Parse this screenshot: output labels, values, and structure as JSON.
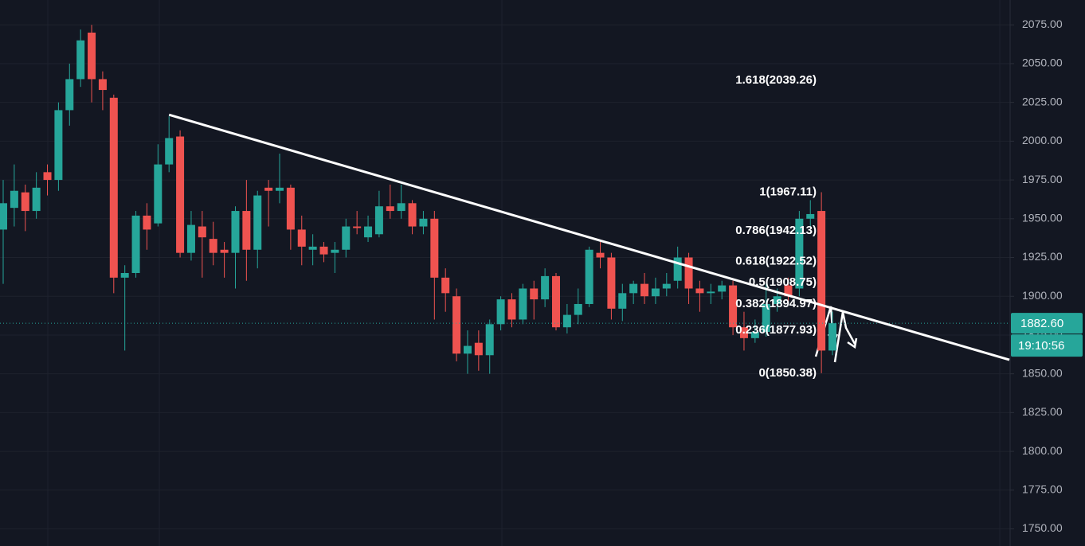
{
  "chart_data": {
    "type": "candlestick",
    "up_color": "#26a69a",
    "down_color": "#ef5350",
    "open": [
      1943,
      1957,
      1967,
      1955,
      1980,
      1975,
      2020,
      2040,
      2070,
      2040,
      2028,
      1912,
      1915,
      1952,
      1947,
      1985,
      2003,
      1928,
      1945,
      1937,
      1930,
      1928,
      1955,
      1930,
      1970,
      1968,
      1970,
      1943,
      1930,
      1932,
      1928,
      1930,
      1945,
      1938,
      1940,
      1958,
      1955,
      1960,
      1945,
      1950,
      1912,
      1900,
      1863,
      1870,
      1862,
      1882,
      1898,
      1885,
      1905,
      1898,
      1913,
      1880,
      1888,
      1895,
      1928,
      1925,
      1892,
      1902,
      1908,
      1900,
      1905,
      1910,
      1925,
      1905,
      1902,
      1903,
      1907,
      1880,
      1873,
      1877,
      1895,
      1907,
      1905,
      1950,
      1955,
      1865
    ],
    "high": [
      1975,
      1985,
      1972,
      1980,
      1985,
      2025,
      2050,
      2072,
      2075,
      2045,
      2030,
      1920,
      1955,
      1960,
      1998,
      2016,
      2007,
      1955,
      1955,
      1948,
      1935,
      1958,
      1975,
      1968,
      1975,
      1992,
      1972,
      1952,
      1940,
      1935,
      1935,
      1950,
      1955,
      1952,
      1968,
      1972,
      1972,
      1962,
      1955,
      1955,
      1918,
      1905,
      1878,
      1878,
      1885,
      1900,
      1902,
      1908,
      1910,
      1918,
      1915,
      1895,
      1905,
      1932,
      1935,
      1928,
      1908,
      1910,
      1915,
      1912,
      1915,
      1932,
      1928,
      1910,
      1908,
      1910,
      1910,
      1890,
      1885,
      1908,
      1905,
      1912,
      1955,
      1962,
      1967.11,
      1890
    ],
    "low": [
      1908,
      1945,
      1942,
      1950,
      1965,
      1968,
      2010,
      2035,
      2025,
      2020,
      1902,
      1865,
      1912,
      1930,
      1945,
      1980,
      1925,
      1923,
      1912,
      1920,
      1912,
      1905,
      1910,
      1918,
      1945,
      1960,
      1930,
      1920,
      1920,
      1922,
      1915,
      1925,
      1940,
      1935,
      1938,
      1950,
      1950,
      1940,
      1940,
      1885,
      1890,
      1858,
      1850,
      1852,
      1850,
      1878,
      1880,
      1882,
      1885,
      1893,
      1878,
      1876,
      1882,
      1893,
      1918,
      1885,
      1884,
      1895,
      1895,
      1895,
      1900,
      1905,
      1895,
      1890,
      1895,
      1898,
      1875,
      1865,
      1870,
      1874,
      1890,
      1895,
      1900,
      1945,
      1850.38,
      1862
    ],
    "close": [
      1960,
      1968,
      1955,
      1970,
      1975,
      2020,
      2040,
      2065,
      2040,
      2033,
      1912,
      1915,
      1952,
      1943,
      1985,
      2002,
      1928,
      1946,
      1938,
      1928,
      1928,
      1955,
      1930,
      1965,
      1968,
      1970,
      1943,
      1932,
      1932,
      1927,
      1930,
      1945,
      1944,
      1945,
      1958,
      1955,
      1960,
      1945,
      1950,
      1912,
      1902,
      1863,
      1868,
      1862,
      1882,
      1898,
      1885,
      1905,
      1898,
      1913,
      1880,
      1888,
      1895,
      1930,
      1925,
      1892,
      1902,
      1908,
      1900,
      1905,
      1908,
      1925,
      1905,
      1902,
      1903,
      1907,
      1880,
      1873,
      1877,
      1895,
      1900,
      1900,
      1950,
      1953,
      1865,
      1882.6
    ],
    "ylim": [
      1740,
      2090
    ],
    "yticks": [
      {
        "value": 1750,
        "label": "1750.00"
      },
      {
        "value": 1775,
        "label": "1775.00"
      },
      {
        "value": 1800,
        "label": "1800.00"
      },
      {
        "value": 1825,
        "label": "1825.00"
      },
      {
        "value": 1850,
        "label": "1850.00"
      },
      {
        "value": 1875,
        "label": "1875.00"
      },
      {
        "value": 1900,
        "label": "1900.00"
      },
      {
        "value": 1925,
        "label": "1925.00"
      },
      {
        "value": 1950,
        "label": "1950.00"
      },
      {
        "value": 1975,
        "label": "1975.00"
      },
      {
        "value": 2000,
        "label": "2000.00"
      },
      {
        "value": 2025,
        "label": "2025.00"
      },
      {
        "value": 2050,
        "label": "2050.00"
      },
      {
        "value": 2075,
        "label": "2075.00"
      }
    ],
    "grid": true,
    "trendline": {
      "x": [
        15,
        91
      ],
      "values": [
        2017,
        1859
      ]
    },
    "fib_levels": [
      {
        "value": 2039.26,
        "label": "1.618(2039.26)"
      },
      {
        "value": 1967.11,
        "label": "1(1967.11)"
      },
      {
        "value": 1942.13,
        "label": "0.786(1942.13)"
      },
      {
        "value": 1922.52,
        "label": "0.618(1922.52)"
      },
      {
        "value": 1908.75,
        "label": "0.5(1908.75)"
      },
      {
        "value": 1894.97,
        "label": "0.382(1894.97)"
      },
      {
        "value": 1877.93,
        "label": "0.236(1877.93)"
      },
      {
        "value": 1850.38,
        "label": "0(1850.38)"
      }
    ],
    "last_price": {
      "value": 1882.6,
      "label": "1882.60"
    },
    "countdown": "19:10:56"
  }
}
